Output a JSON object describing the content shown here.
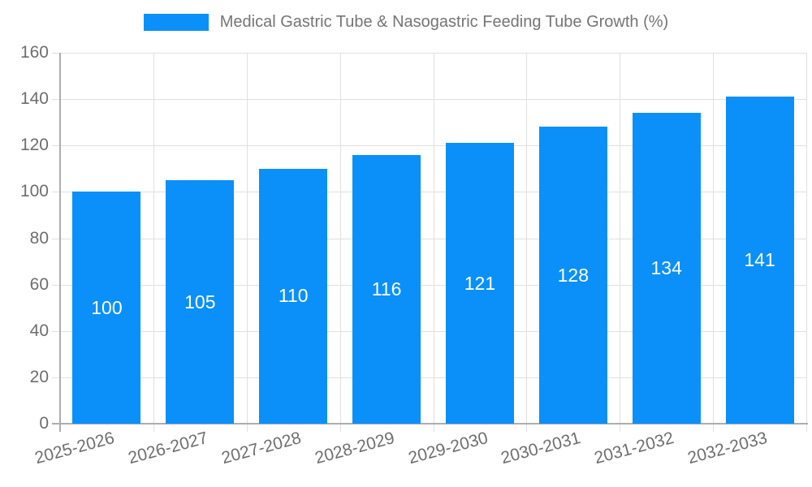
{
  "chart_data": {
    "type": "bar",
    "title": "Medical Gastric Tube & Nasogastric Feeding Tube Growth (%)",
    "legend_position": "top",
    "grid": true,
    "categories": [
      "2025-2026",
      "2026-2027",
      "2027-2028",
      "2028-2029",
      "2029-2030",
      "2030-2031",
      "2031-2032",
      "2032-2033"
    ],
    "series": [
      {
        "name": "Medical Gastric Tube & Nasogastric Feeding Tube Growth (%)",
        "values": [
          100,
          105,
          110,
          116,
          121,
          128,
          134,
          141
        ]
      }
    ],
    "data_labels": [
      "100",
      "105",
      "110",
      "116",
      "121",
      "128",
      "134",
      "141"
    ],
    "xlabel": "",
    "ylabel": "",
    "ylim": [
      0,
      160
    ],
    "ytick_step": 20,
    "ytick_labels": [
      "0",
      "20",
      "40",
      "60",
      "80",
      "100",
      "120",
      "140",
      "160"
    ],
    "colors": {
      "bar": "#0a90f8",
      "bar_label": "#ffffff",
      "title": "#757575",
      "axis_label": "#6e6e6e",
      "gridline": "#e0e0e0",
      "axis_line": "#adadad"
    }
  }
}
